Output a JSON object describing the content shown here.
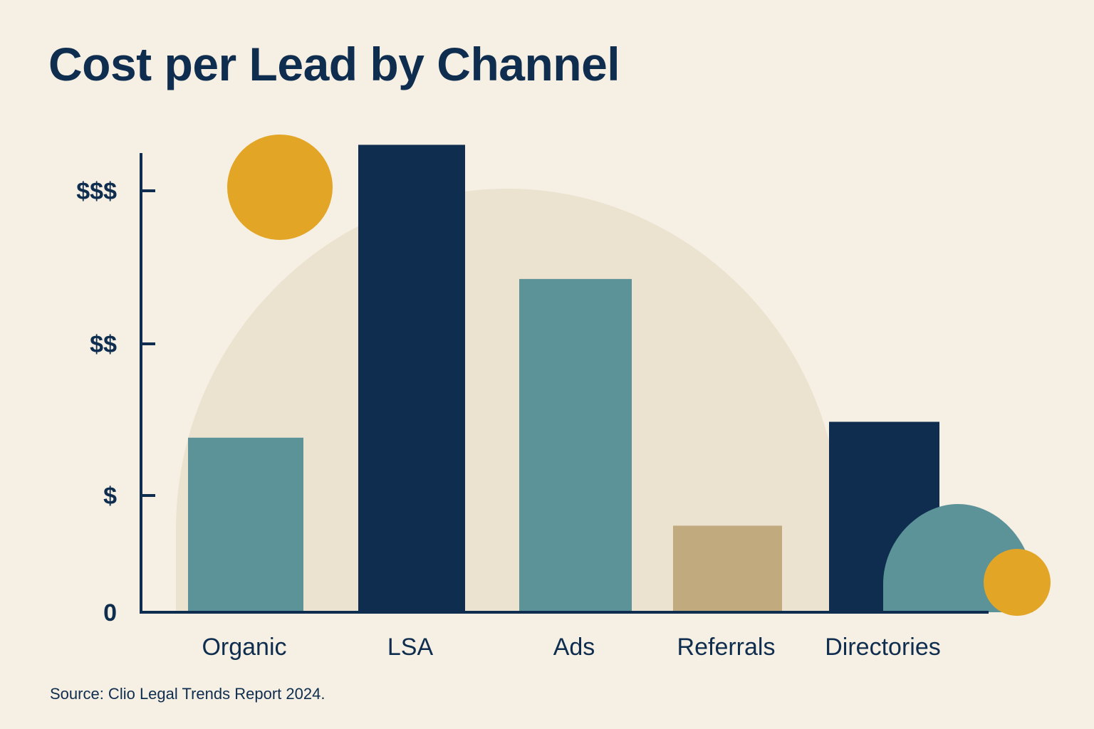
{
  "title": "Cost per Lead by Channel",
  "source": "Source: Clio Legal Trends Report 2024.",
  "colors": {
    "background": "#f6efe3",
    "backdrop": "#ebe2d0",
    "navy": "#0f2d4e",
    "teal": "#5b9399",
    "tan": "#c1aa7e",
    "gold": "#e3a526"
  },
  "chart_data": {
    "type": "bar",
    "title": "Cost per Lead by Channel",
    "xlabel": "",
    "ylabel": "",
    "categories": [
      "Organic",
      "LSA",
      "Ads",
      "Referrals",
      "Directories"
    ],
    "values": [
      1.21,
      3.24,
      2.31,
      0.6,
      1.32
    ],
    "bar_colors": [
      "#5b9399",
      "#0f2d4e",
      "#5b9399",
      "#c1aa7e",
      "#0f2d4e"
    ],
    "y_ticks": [
      {
        "value": 0,
        "label": "0"
      },
      {
        "value": 1,
        "label": "$"
      },
      {
        "value": 2,
        "label": "$$"
      },
      {
        "value": 3,
        "label": "$$$"
      }
    ],
    "ylim": [
      0,
      3.4
    ],
    "grid": false,
    "legend": "none"
  }
}
